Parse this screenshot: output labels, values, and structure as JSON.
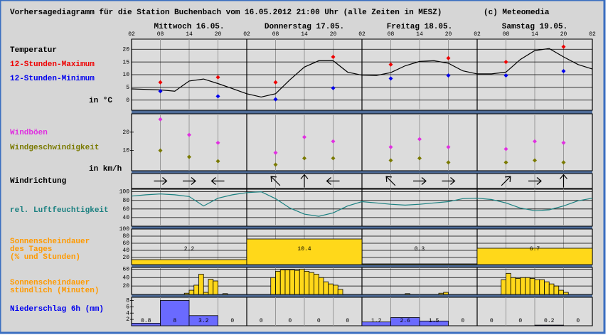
{
  "title": "Vorhersagediagramm für die Station Buchenbach vom 16.05.2012 21:00 Uhr (alle Zeiten in MESZ)",
  "copyright": "(c) Meteomedia",
  "chart_data": [
    {
      "type": "line",
      "day_labels": [
        "Mittwoch 16.05.",
        "Donnerstag 17.05.",
        "Freitag 18.05.",
        "Samstag 19.05."
      ],
      "xlim": [
        0,
        96
      ],
      "xticks": [
        {
          "value": 0,
          "label": "02"
        },
        {
          "value": 6,
          "label": "08"
        },
        {
          "value": 12,
          "label": "14"
        },
        {
          "value": 18,
          "label": "20"
        },
        {
          "value": 24,
          "label": "02"
        },
        {
          "value": 30,
          "label": "08"
        },
        {
          "value": 36,
          "label": "14"
        },
        {
          "value": 42,
          "label": "20"
        },
        {
          "value": 48,
          "label": "02"
        },
        {
          "value": 54,
          "label": "08"
        },
        {
          "value": 60,
          "label": "14"
        },
        {
          "value": 66,
          "label": "20"
        },
        {
          "value": 72,
          "label": "02"
        },
        {
          "value": 78,
          "label": "08"
        },
        {
          "value": 84,
          "label": "14"
        },
        {
          "value": 90,
          "label": "20"
        },
        {
          "value": 96,
          "label": "02"
        }
      ],
      "ylim": [
        -4,
        24
      ],
      "yticks": [
        0,
        5,
        10,
        15,
        20
      ],
      "grid": true,
      "unit": "in °C",
      "series": [
        {
          "name": "Temperatur",
          "color": "#000000",
          "style": "line",
          "x": [
            0,
            3,
            6,
            9,
            12,
            15,
            18,
            21,
            24,
            27,
            30,
            33,
            36,
            39,
            42,
            45,
            48,
            51,
            54,
            57,
            60,
            63,
            66,
            69,
            72,
            75,
            78,
            81,
            84,
            87,
            90,
            93,
            96
          ],
          "values": [
            4.4,
            4.2,
            4.0,
            3.5,
            7.5,
            8.3,
            6.5,
            4.5,
            2.5,
            1.2,
            2.5,
            8,
            13,
            15.5,
            15.5,
            11,
            9.8,
            9.7,
            10.8,
            13.5,
            15.2,
            15.5,
            14.5,
            11.5,
            10.3,
            10.3,
            11,
            16,
            19.5,
            20.3,
            17,
            14,
            12.2
          ]
        },
        {
          "name": "12-Stunden-Maximum",
          "color": "#ee0000",
          "style": "points",
          "x": [
            6,
            18,
            30,
            42,
            54,
            66,
            78,
            90
          ],
          "values": [
            7,
            9,
            7,
            17,
            14,
            16.5,
            15,
            21
          ]
        },
        {
          "name": "12-Stunden-Minimum",
          "color": "#0000ee",
          "style": "points",
          "x": [
            6,
            18,
            30,
            42,
            54,
            66,
            78,
            90
          ],
          "values": [
            3.5,
            1.5,
            0.3,
            4.7,
            8.5,
            9.7,
            9.7,
            11.4
          ]
        }
      ]
    },
    {
      "type": "scatter",
      "ylim": [
        -1,
        30
      ],
      "yticks": [
        10,
        20
      ],
      "grid": false,
      "unit": "in km/h",
      "series": [
        {
          "name": "Windböen",
          "color": "#e030e0",
          "style": "points",
          "x": [
            6,
            12,
            18,
            30,
            36,
            42,
            54,
            60,
            66,
            78,
            84,
            90
          ],
          "values": [
            27,
            18.5,
            14.2,
            8.8,
            17.3,
            15,
            11.9,
            16.2,
            11.9,
            10.8,
            15,
            14.2
          ]
        },
        {
          "name": "Windgeschwindigkeit",
          "color": "#7a7a00",
          "style": "points",
          "x": [
            6,
            12,
            18,
            30,
            36,
            42,
            54,
            60,
            66,
            78,
            84,
            90
          ],
          "values": [
            10,
            6.5,
            4.2,
            2.3,
            5.8,
            5.8,
            4.6,
            5.8,
            3.5,
            3.5,
            4.6,
            3.5
          ]
        }
      ]
    },
    {
      "type": "arrows",
      "title": "Windrichtung",
      "x": [
        6,
        12,
        18,
        30,
        36,
        42,
        54,
        60,
        66,
        78,
        84,
        90
      ],
      "values": [
        90,
        90,
        270,
        315,
        0,
        270,
        315,
        90,
        90,
        45,
        90,
        0
      ]
    },
    {
      "type": "line",
      "ylim": [
        20,
        106
      ],
      "yticks": [
        40,
        60,
        80,
        100
      ],
      "grid": true,
      "series": [
        {
          "name": "rel. Luftfeuchtigkeit",
          "color": "#1a8080",
          "style": "line",
          "x": [
            0,
            3,
            6,
            9,
            12,
            15,
            18,
            21,
            24,
            27,
            30,
            33,
            36,
            39,
            42,
            45,
            48,
            51,
            54,
            57,
            60,
            63,
            66,
            69,
            72,
            75,
            78,
            81,
            84,
            87,
            90,
            93,
            96
          ],
          "values": [
            90,
            93,
            95,
            93,
            89,
            67,
            85,
            93,
            98,
            100,
            84,
            62,
            48,
            43,
            51,
            67,
            77,
            74,
            71,
            69,
            71,
            74,
            77,
            84,
            85,
            82,
            74,
            62,
            56,
            58,
            67,
            79,
            85
          ]
        }
      ]
    },
    {
      "type": "histogram",
      "label": [
        "Sonnenscheindauer",
        "des Tages",
        "(% und Stunden)"
      ],
      "color": "#ffd81a",
      "ylim": [
        0,
        100
      ],
      "yticks": [
        20,
        40,
        60,
        80,
        100
      ],
      "grid": true,
      "bins": [
        0,
        24,
        48,
        72,
        96
      ],
      "values": [
        14,
        72,
        2,
        46
      ],
      "hours": [
        2.2,
        10.4,
        0.3,
        6.7
      ]
    },
    {
      "type": "histogram",
      "label": [
        "Sonnenscheindauer",
        "stündlich (Minuten)"
      ],
      "color": "#ffd81a",
      "ylim": [
        0,
        64
      ],
      "yticks": [
        20,
        40,
        60
      ],
      "grid": true,
      "bins": [
        0,
        1,
        2,
        3,
        4,
        5,
        6,
        7,
        8,
        9,
        10,
        11,
        12,
        13,
        14,
        15,
        16,
        17,
        18,
        19,
        20,
        21,
        22,
        23,
        24,
        25,
        26,
        27,
        28,
        29,
        30,
        31,
        32,
        33,
        34,
        35,
        36,
        37,
        38,
        39,
        40,
        41,
        42,
        43,
        44,
        45,
        46,
        47,
        48,
        49,
        50,
        51,
        52,
        53,
        54,
        55,
        56,
        57,
        58,
        59,
        60,
        61,
        62,
        63,
        64,
        65,
        66,
        67,
        68,
        69,
        70,
        71,
        72,
        73,
        74,
        75,
        76,
        77,
        78,
        79,
        80,
        81,
        82,
        83,
        84,
        85,
        86,
        87,
        88,
        89,
        90,
        91,
        92,
        93,
        94,
        95,
        96
      ],
      "values": [
        0,
        0,
        0,
        0,
        0,
        0,
        0,
        0,
        0,
        0,
        0,
        3,
        10,
        22,
        48,
        5,
        36,
        32,
        0,
        2,
        0,
        0,
        0,
        0,
        0,
        0,
        0,
        0,
        0,
        40,
        55,
        58,
        58,
        58,
        57,
        60,
        55,
        52,
        48,
        40,
        30,
        25,
        22,
        12,
        0,
        0,
        0,
        0,
        0,
        0,
        0,
        0,
        0,
        0,
        0,
        0,
        0,
        2,
        0,
        0,
        0,
        0,
        0,
        0,
        3,
        5,
        0,
        0,
        0,
        0,
        0,
        0,
        0,
        0,
        0,
        0,
        0,
        35,
        50,
        40,
        38,
        40,
        40,
        38,
        35,
        35,
        30,
        25,
        20,
        10,
        5,
        0,
        0,
        0,
        0,
        0
      ]
    },
    {
      "type": "histogram",
      "title": "Niederschlag 6h (mm)",
      "color": "#6a6aff",
      "ylim": [
        0,
        9
      ],
      "yticks": [
        2,
        4,
        6,
        8
      ],
      "grid": false,
      "labels": true,
      "bins": [
        0,
        6,
        12,
        18,
        24,
        30,
        36,
        42,
        48,
        54,
        60,
        66,
        72,
        78,
        84,
        90,
        96
      ],
      "values": [
        0.8,
        8,
        3.2,
        0,
        0,
        0,
        0,
        0,
        1.2,
        2.6,
        1.5,
        0,
        0,
        0,
        0.2,
        0
      ]
    }
  ]
}
